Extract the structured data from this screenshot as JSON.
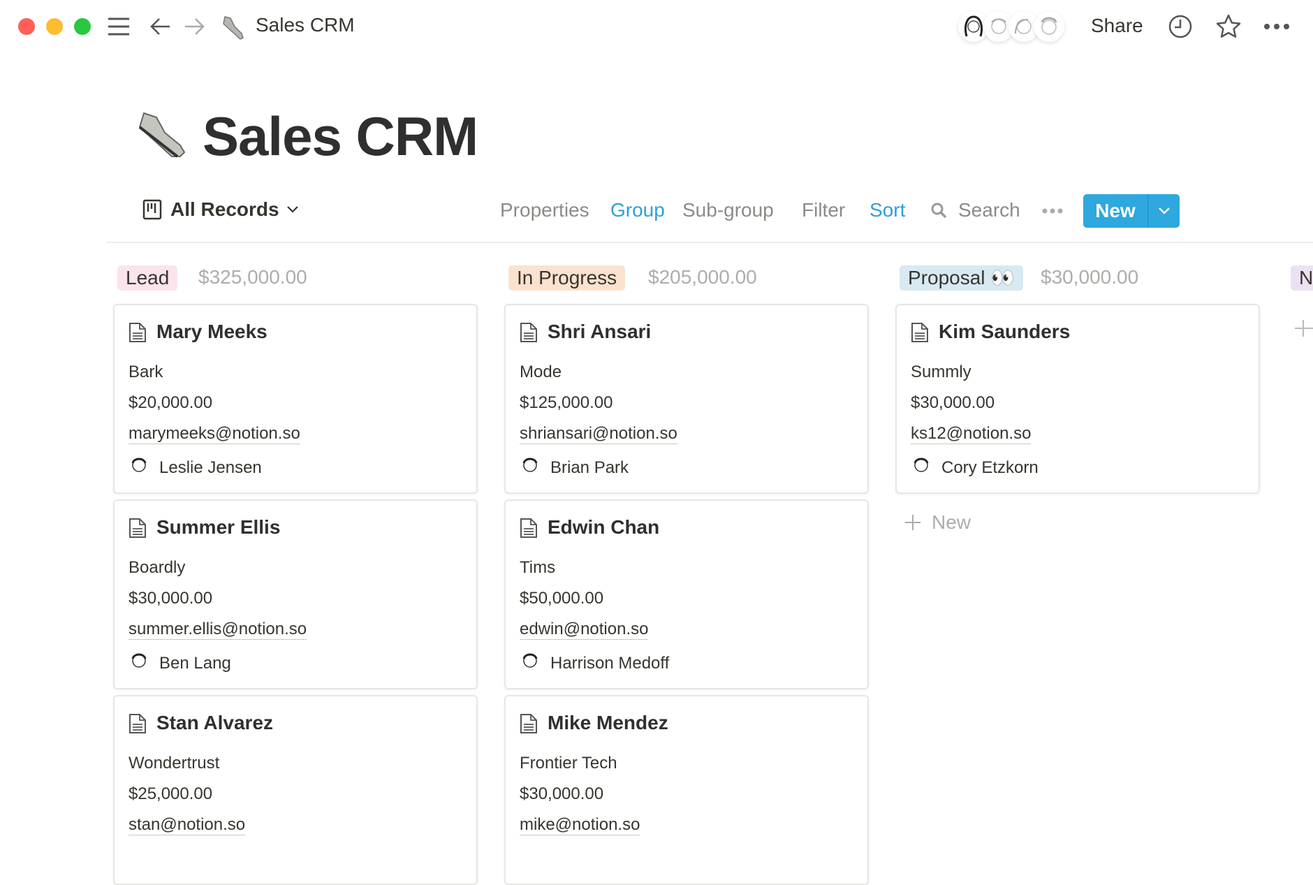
{
  "window": {
    "title": "Sales CRM",
    "controls": {
      "close": "#ff5f57",
      "minimize": "#febc2e",
      "maximize": "#28c840"
    }
  },
  "topbar": {
    "share_label": "Share",
    "icons": [
      "menu-icon",
      "back-arrow-icon",
      "forward-arrow-icon",
      "clock-icon",
      "star-icon",
      "more-icon"
    ]
  },
  "page": {
    "title": "Sales CRM",
    "icon": "sneaker-icon"
  },
  "toolbar": {
    "view_label": "All Records",
    "properties": "Properties",
    "group": "Group",
    "subgroup": "Sub-group",
    "filter": "Filter",
    "sort": "Sort",
    "search": "Search",
    "new_label": "New",
    "accent": "#2ea8de"
  },
  "columns": [
    {
      "label": "Lead",
      "color": "#fbe4ec",
      "total": "$325,000.00",
      "cards": [
        {
          "name": "Mary Meeks",
          "company": "Bark",
          "amount": "$20,000.00",
          "email": "marymeeks@notion.so",
          "owner": "Leslie Jensen"
        },
        {
          "name": "Summer Ellis",
          "company": "Boardly",
          "amount": "$30,000.00",
          "email": "summer.ellis@notion.so",
          "owner": "Ben Lang"
        },
        {
          "name": "Stan Alvarez",
          "company": "Wondertrust",
          "amount": "$25,000.00",
          "email": "stan@notion.so",
          "owner": ""
        }
      ]
    },
    {
      "label": "In Progress",
      "color": "#fbe2cf",
      "total": "$205,000.00",
      "cards": [
        {
          "name": "Shri Ansari",
          "company": "Mode",
          "amount": "$125,000.00",
          "email": "shriansari@notion.so",
          "owner": "Brian Park"
        },
        {
          "name": "Edwin Chan",
          "company": "Tims",
          "amount": "$50,000.00",
          "email": "edwin@notion.so",
          "owner": "Harrison Medoff"
        },
        {
          "name": "Mike Mendez",
          "company": "Frontier Tech",
          "amount": "$30,000.00",
          "email": "mike@notion.so",
          "owner": ""
        }
      ]
    },
    {
      "label": "Proposal 👀",
      "color": "#d8e9f2",
      "total": "$30,000.00",
      "cards": [
        {
          "name": "Kim Saunders",
          "company": "Summly",
          "amount": "$30,000.00",
          "email": "ks12@notion.so",
          "owner": "Cory Etzkorn"
        }
      ],
      "add_label": "New"
    },
    {
      "label": "N",
      "color": "#ece1f2",
      "total": "",
      "cards": []
    }
  ]
}
